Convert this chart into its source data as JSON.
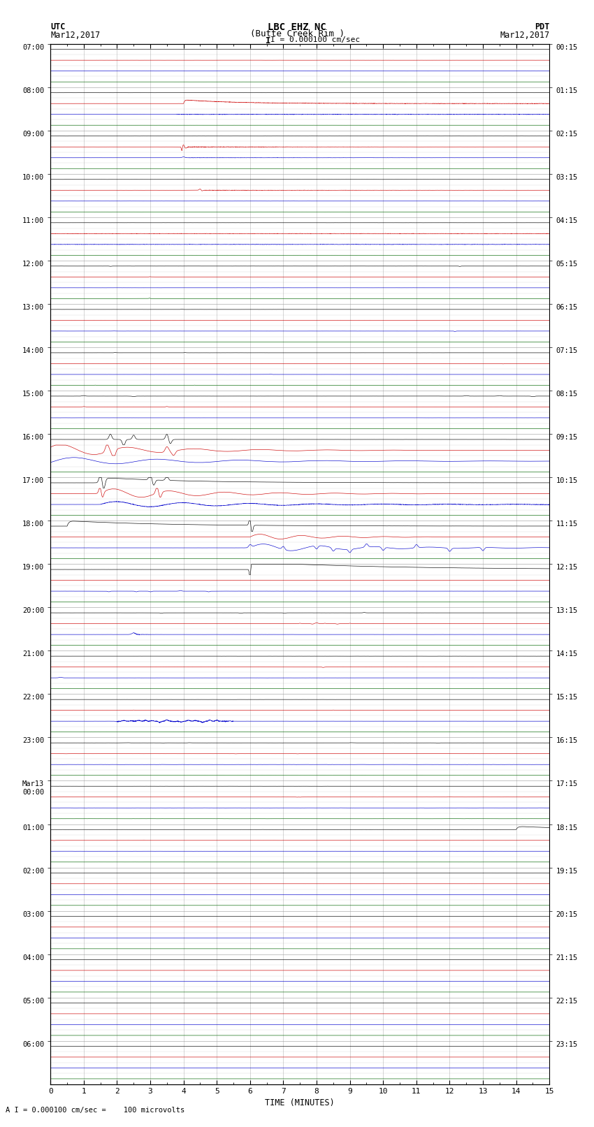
{
  "title_line1": "LBC EHZ NC",
  "title_line2": "(Butte Creek Rim )",
  "scale_label": "I = 0.000100 cm/sec",
  "left_header_line1": "UTC",
  "left_header_line2": "Mar12,2017",
  "right_header_line1": "PDT",
  "right_header_line2": "Mar12,2017",
  "bottom_note": "A I = 0.000100 cm/sec =    100 microvolts",
  "xlabel": "TIME (MINUTES)",
  "left_times": [
    "07:00",
    "08:00",
    "09:00",
    "10:00",
    "11:00",
    "12:00",
    "13:00",
    "14:00",
    "15:00",
    "16:00",
    "17:00",
    "18:00",
    "19:00",
    "20:00",
    "21:00",
    "22:00",
    "23:00",
    "Mar13\n00:00",
    "01:00",
    "02:00",
    "03:00",
    "04:00",
    "05:00",
    "06:00"
  ],
  "right_times": [
    "00:15",
    "01:15",
    "02:15",
    "03:15",
    "04:15",
    "05:15",
    "06:15",
    "07:15",
    "08:15",
    "09:15",
    "10:15",
    "11:15",
    "12:15",
    "13:15",
    "14:15",
    "15:15",
    "16:15",
    "17:15",
    "18:15",
    "19:15",
    "20:15",
    "21:15",
    "22:15",
    "23:15"
  ],
  "n_rows": 96,
  "traces_per_hour": 4,
  "x_min": 0,
  "x_max": 15,
  "background_color": "#ffffff",
  "grid_color": "#999999",
  "trace_colors": [
    "#000000",
    "#cc0000",
    "#0000cc",
    "#006600"
  ]
}
